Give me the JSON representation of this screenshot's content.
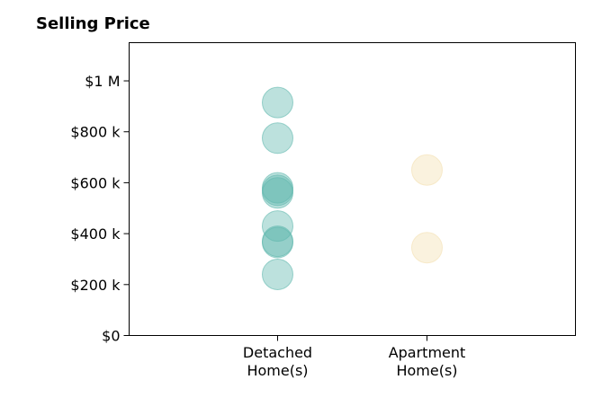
{
  "chart_data": {
    "type": "scatter",
    "title": "Selling Price",
    "xlabel": "",
    "ylabel": "",
    "ylim": [
      0,
      1150000
    ],
    "grid": false,
    "y_ticks": [
      {
        "value": 0,
        "label": "$0"
      },
      {
        "value": 200000,
        "label": "$200 k"
      },
      {
        "value": 400000,
        "label": "$400 k"
      },
      {
        "value": 600000,
        "label": "$600 k"
      },
      {
        "value": 800000,
        "label": "$800 k"
      },
      {
        "value": 1000000,
        "label": "$1 M"
      }
    ],
    "categories": [
      {
        "key": "detached",
        "label_lines": [
          "Detached",
          "Home(s)"
        ]
      },
      {
        "key": "apartment",
        "label_lines": [
          "Apartment",
          "Home(s)"
        ]
      }
    ],
    "series": [
      {
        "category": "detached",
        "color": "#5fb8ae",
        "values": [
          915000,
          775000,
          580000,
          570000,
          560000,
          430000,
          370000,
          365000,
          240000
        ]
      },
      {
        "category": "apartment",
        "color": "#f3dfb0",
        "values": [
          650000,
          345000
        ]
      }
    ]
  }
}
